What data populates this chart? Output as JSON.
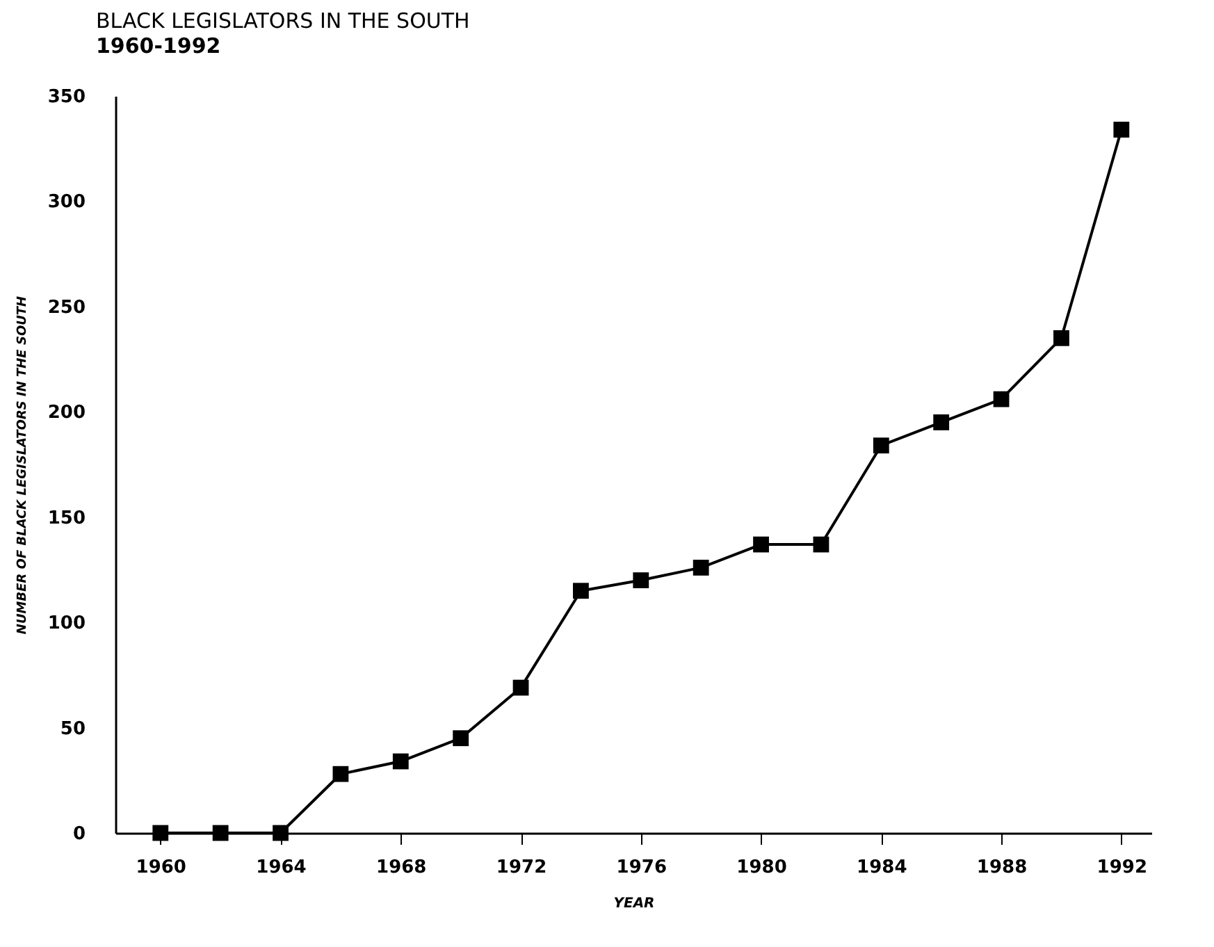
{
  "chart_data": {
    "type": "line",
    "title": "BLACK LEGISLATORS IN THE SOUTH",
    "subtitle": "1960-1992",
    "xlabel": "YEAR",
    "ylabel": "NUMBER OF BLACK LEGISLATORS IN THE SOUTH",
    "x": [
      1960,
      1962,
      1964,
      1966,
      1968,
      1970,
      1972,
      1974,
      1976,
      1978,
      1980,
      1982,
      1984,
      1986,
      1988,
      1990,
      1992
    ],
    "series": [
      {
        "color": "#000000",
        "values": [
          0,
          0,
          0,
          28,
          34,
          45,
          69,
          115,
          120,
          126,
          137,
          137,
          184,
          195,
          206,
          235,
          334
        ]
      }
    ],
    "xlim": [
      1958.5,
      1993
    ],
    "xticks": [
      1960,
      1964,
      1968,
      1972,
      1976,
      1980,
      1984,
      1988,
      1992
    ],
    "ylim": [
      0,
      350
    ],
    "yticks": [
      0,
      50,
      100,
      150,
      200,
      250,
      300,
      350
    ],
    "grid": false,
    "legend": false,
    "marker": "square",
    "line_style": "solid"
  }
}
